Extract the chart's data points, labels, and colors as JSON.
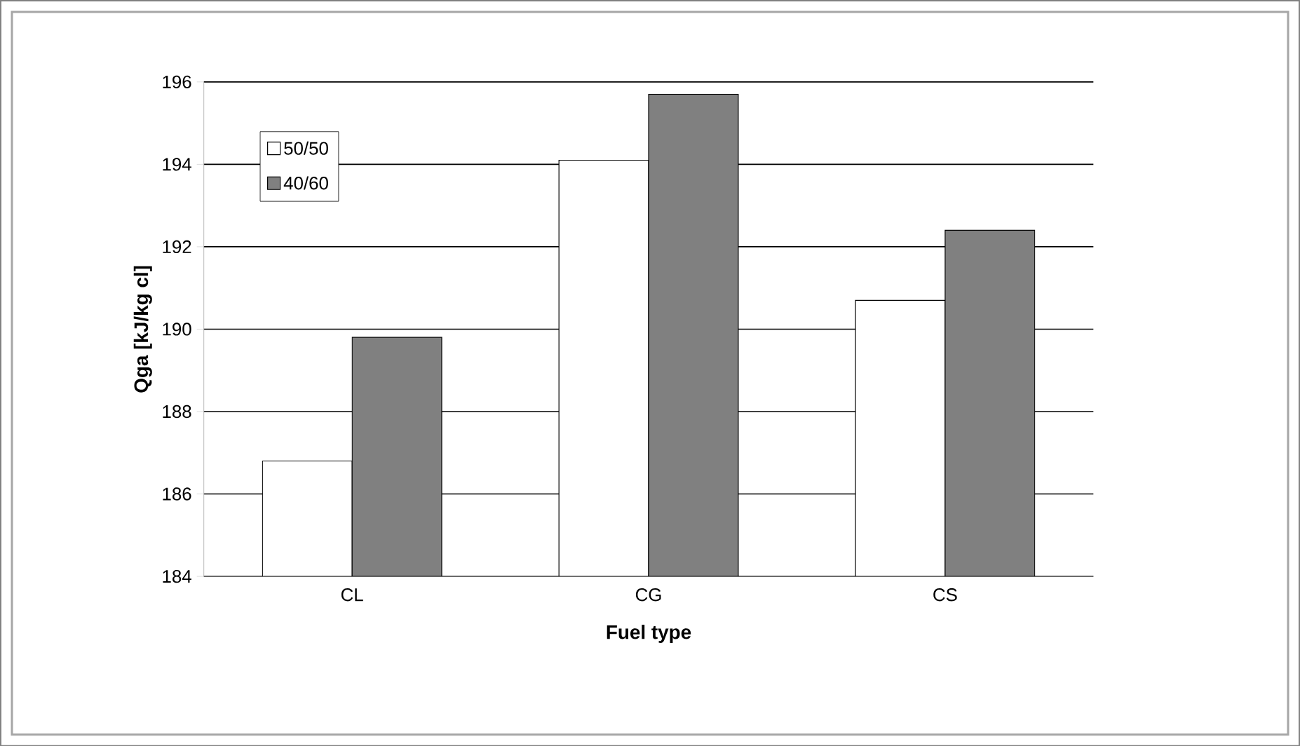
{
  "chart_data": {
    "type": "bar",
    "xlabel": "Fuel type",
    "ylabel": "Qga [kJ/kg cl]",
    "categories": [
      "CL",
      "CG",
      "CS"
    ],
    "series": [
      {
        "name": "50/50",
        "color": "#ffffff",
        "values": [
          186.8,
          194.1,
          190.7
        ]
      },
      {
        "name": "40/60",
        "color": "#808080",
        "values": [
          189.8,
          195.7,
          192.4
        ]
      }
    ],
    "ylim": [
      184,
      196
    ],
    "yticks": [
      184,
      186,
      188,
      190,
      192,
      194,
      196
    ],
    "grid": "y",
    "legend": "top left"
  }
}
